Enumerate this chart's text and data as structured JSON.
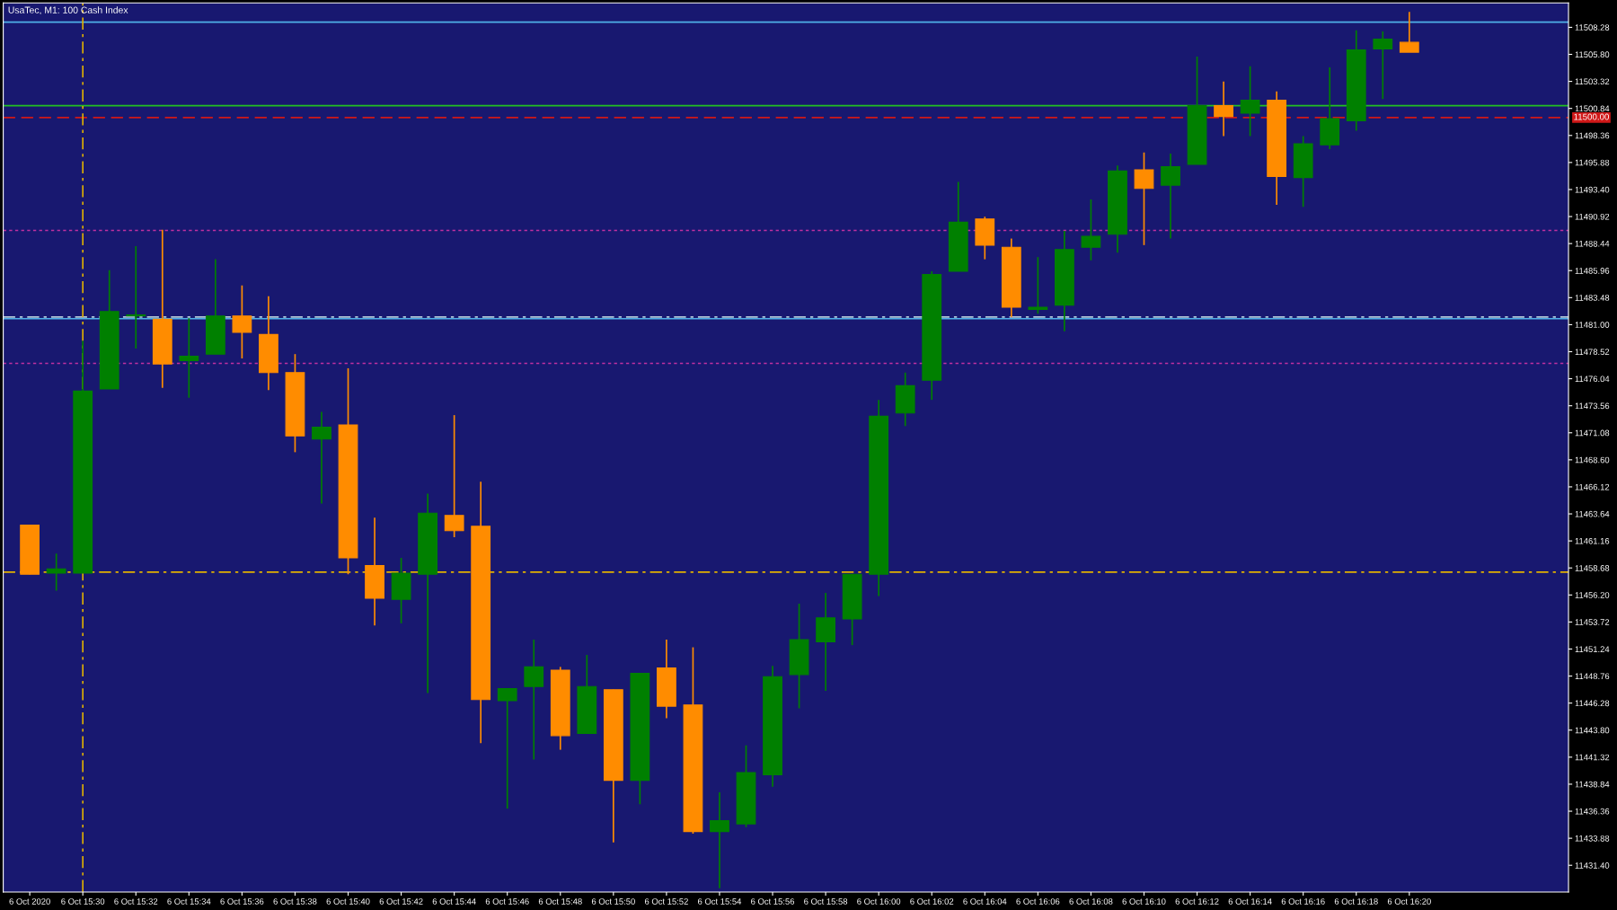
{
  "chart_data": {
    "type": "candlestick",
    "title": "UsaTec, M1: 100 Cash Index",
    "x": [
      "2020-10-06T15:28",
      "2020-10-06T15:29",
      "2020-10-06T15:30",
      "2020-10-06T15:31",
      "2020-10-06T15:32",
      "2020-10-06T15:33",
      "2020-10-06T15:34",
      "2020-10-06T15:35",
      "2020-10-06T15:36",
      "2020-10-06T15:37",
      "2020-10-06T15:38",
      "2020-10-06T15:39",
      "2020-10-06T15:40",
      "2020-10-06T15:41",
      "2020-10-06T15:42",
      "2020-10-06T15:43",
      "2020-10-06T15:44",
      "2020-10-06T15:45",
      "2020-10-06T15:46",
      "2020-10-06T15:47",
      "2020-10-06T15:48",
      "2020-10-06T15:49",
      "2020-10-06T15:50",
      "2020-10-06T15:51",
      "2020-10-06T15:52",
      "2020-10-06T15:53",
      "2020-10-06T15:54",
      "2020-10-06T15:55",
      "2020-10-06T15:56",
      "2020-10-06T15:57",
      "2020-10-06T15:58",
      "2020-10-06T15:59",
      "2020-10-06T16:00",
      "2020-10-06T16:01",
      "2020-10-06T16:02",
      "2020-10-06T16:03",
      "2020-10-06T16:04",
      "2020-10-06T16:05",
      "2020-10-06T16:06",
      "2020-10-06T16:07",
      "2020-10-06T16:08",
      "2020-10-06T16:09",
      "2020-10-06T16:10",
      "2020-10-06T16:11",
      "2020-10-06T16:12",
      "2020-10-06T16:13",
      "2020-10-06T16:14",
      "2020-10-06T16:15",
      "2020-10-06T16:16",
      "2020-10-06T16:17",
      "2020-10-06T16:18",
      "2020-10-06T16:19",
      "2020-10-06T16:20"
    ],
    "ohlc": [
      [
        11462.6,
        11462.6,
        11458.1,
        11458.1
      ],
      [
        11458.2,
        11460.0,
        11456.6,
        11458.6
      ],
      [
        11458.2,
        11479.5,
        11458.2,
        11474.9
      ],
      [
        11475.1,
        11486.0,
        11475.1,
        11482.2
      ],
      [
        11481.8,
        11488.2,
        11478.8,
        11481.9
      ],
      [
        11481.5,
        11489.7,
        11475.2,
        11477.4
      ],
      [
        11477.7,
        11481.6,
        11474.3,
        11478.1
      ],
      [
        11478.3,
        11487.0,
        11478.3,
        11481.8
      ],
      [
        11481.8,
        11484.6,
        11477.9,
        11480.3
      ],
      [
        11480.1,
        11483.6,
        11475.0,
        11476.6
      ],
      [
        11476.6,
        11478.3,
        11469.3,
        11470.8
      ],
      [
        11470.5,
        11473.0,
        11464.6,
        11471.6
      ],
      [
        11471.8,
        11477.0,
        11458.1,
        11459.6
      ],
      [
        11458.9,
        11463.3,
        11453.4,
        11455.9
      ],
      [
        11455.8,
        11459.6,
        11453.6,
        11458.2
      ],
      [
        11458.1,
        11465.5,
        11447.2,
        11463.7
      ],
      [
        11463.5,
        11472.7,
        11461.5,
        11462.1
      ],
      [
        11462.5,
        11466.6,
        11442.6,
        11446.6
      ],
      [
        11446.5,
        11447.6,
        11436.6,
        11447.6
      ],
      [
        11447.8,
        11452.1,
        11441.1,
        11449.6
      ],
      [
        11449.3,
        11449.6,
        11442.0,
        11443.3
      ],
      [
        11443.5,
        11450.7,
        11443.5,
        11447.8
      ],
      [
        11447.5,
        11447.5,
        11433.5,
        11439.2
      ],
      [
        11439.2,
        11449.0,
        11437.0,
        11449.0
      ],
      [
        11449.5,
        11452.1,
        11444.9,
        11446.0
      ],
      [
        11446.1,
        11451.4,
        11434.3,
        11434.5
      ],
      [
        11434.5,
        11438.1,
        11429.3,
        11435.5
      ],
      [
        11435.2,
        11442.4,
        11434.9,
        11439.9
      ],
      [
        11439.7,
        11449.7,
        11438.6,
        11448.7
      ],
      [
        11448.9,
        11455.4,
        11445.8,
        11452.1
      ],
      [
        11451.9,
        11456.4,
        11447.4,
        11454.1
      ],
      [
        11454.0,
        11458.1,
        11451.6,
        11458.1
      ],
      [
        11458.1,
        11474.1,
        11456.1,
        11472.6
      ],
      [
        11472.9,
        11476.6,
        11471.7,
        11475.4
      ],
      [
        11475.9,
        11485.9,
        11474.1,
        11485.6
      ],
      [
        11485.9,
        11494.1,
        11485.9,
        11490.4
      ],
      [
        11490.7,
        11490.9,
        11487.0,
        11488.3
      ],
      [
        11488.1,
        11488.9,
        11481.7,
        11482.6
      ],
      [
        11482.4,
        11487.2,
        11482.0,
        11482.6
      ],
      [
        11482.8,
        11489.6,
        11480.4,
        11487.9
      ],
      [
        11488.1,
        11492.5,
        11486.9,
        11489.1
      ],
      [
        11489.3,
        11495.6,
        11487.6,
        11495.1
      ],
      [
        11495.2,
        11496.8,
        11488.3,
        11493.5
      ],
      [
        11493.8,
        11496.7,
        11488.9,
        11495.5
      ],
      [
        11495.7,
        11505.6,
        11495.7,
        11501.1
      ],
      [
        11501.1,
        11503.3,
        11498.3,
        11500.1
      ],
      [
        11500.4,
        11504.7,
        11498.3,
        11501.6
      ],
      [
        11501.6,
        11502.4,
        11492.0,
        11494.6
      ],
      [
        11494.5,
        11498.3,
        11491.8,
        11497.6
      ],
      [
        11497.5,
        11504.6,
        11497.1,
        11499.9
      ],
      [
        11499.7,
        11508.0,
        11498.8,
        11506.2
      ],
      [
        11506.3,
        11507.9,
        11501.7,
        11507.2
      ],
      [
        11506.9,
        11509.7,
        11506.0,
        11506.0
      ]
    ],
    "colors": [
      "#ff8c00",
      "#008000",
      "#008000",
      "#008000",
      "#008000",
      "#ff8c00",
      "#008000",
      "#008000",
      "#ff8c00",
      "#ff8c00",
      "#ff8c00",
      "#008000",
      "#ff8c00",
      "#ff8c00",
      "#008000",
      "#008000",
      "#ff8c00",
      "#ff8c00",
      "#008000",
      "#008000",
      "#ff8c00",
      "#008000",
      "#ff8c00",
      "#008000",
      "#ff8c00",
      "#ff8c00",
      "#008000",
      "#008000",
      "#008000",
      "#008000",
      "#008000",
      "#008000",
      "#008000",
      "#008000",
      "#008000",
      "#008000",
      "#ff8c00",
      "#ff8c00",
      "#008000",
      "#008000",
      "#008000",
      "#008000",
      "#ff8c00",
      "#008000",
      "#008000",
      "#ff8c00",
      "#008000",
      "#ff8c00",
      "#008000",
      "#008000",
      "#008000",
      "#008000",
      "#ff8c00"
    ],
    "xlim": [
      "2020-10-06T15:27",
      "2020-10-06T16:26"
    ],
    "xticks": [
      {
        "value": "2020-10-06T15:28",
        "label": "6 Oct 2020"
      },
      {
        "value": "2020-10-06T15:30",
        "label": "6 Oct 15:30"
      },
      {
        "value": "2020-10-06T15:32",
        "label": "6 Oct 15:32"
      },
      {
        "value": "2020-10-06T15:34",
        "label": "6 Oct 15:34"
      },
      {
        "value": "2020-10-06T15:36",
        "label": "6 Oct 15:36"
      },
      {
        "value": "2020-10-06T15:38",
        "label": "6 Oct 15:38"
      },
      {
        "value": "2020-10-06T15:40",
        "label": "6 Oct 15:40"
      },
      {
        "value": "2020-10-06T15:42",
        "label": "6 Oct 15:42"
      },
      {
        "value": "2020-10-06T15:44",
        "label": "6 Oct 15:44"
      },
      {
        "value": "2020-10-06T15:46",
        "label": "6 Oct 15:46"
      },
      {
        "value": "2020-10-06T15:48",
        "label": "6 Oct 15:48"
      },
      {
        "value": "2020-10-06T15:50",
        "label": "6 Oct 15:50"
      },
      {
        "value": "2020-10-06T15:52",
        "label": "6 Oct 15:52"
      },
      {
        "value": "2020-10-06T15:54",
        "label": "6 Oct 15:54"
      },
      {
        "value": "2020-10-06T15:56",
        "label": "6 Oct 15:56"
      },
      {
        "value": "2020-10-06T15:58",
        "label": "6 Oct 15:58"
      },
      {
        "value": "2020-10-06T16:00",
        "label": "6 Oct 16:00"
      },
      {
        "value": "2020-10-06T16:02",
        "label": "6 Oct 16:02"
      },
      {
        "value": "2020-10-06T16:04",
        "label": "6 Oct 16:04"
      },
      {
        "value": "2020-10-06T16:06",
        "label": "6 Oct 16:06"
      },
      {
        "value": "2020-10-06T16:08",
        "label": "6 Oct 16:08"
      },
      {
        "value": "2020-10-06T16:10",
        "label": "6 Oct 16:10"
      },
      {
        "value": "2020-10-06T16:12",
        "label": "6 Oct 16:12"
      },
      {
        "value": "2020-10-06T16:14",
        "label": "6 Oct 16:14"
      },
      {
        "value": "2020-10-06T16:16",
        "label": "6 Oct 16:16"
      },
      {
        "value": "2020-10-06T16:18",
        "label": "6 Oct 16:18"
      },
      {
        "value": "2020-10-06T16:20",
        "label": "6 Oct 16:20"
      }
    ],
    "ylim": [
      11428.95,
      11510.52
    ],
    "yticks": [
      11508.28,
      {
        "value": 11505.8,
        "label": "11505.80"
      },
      11503.32,
      11500.84,
      11498.36,
      11495.88,
      {
        "value": 11493.4,
        "label": "11493.40"
      },
      11490.92,
      11488.44,
      11485.96,
      11483.48,
      {
        "value": 11481.0,
        "label": "11481.00"
      },
      11478.52,
      11476.04,
      11473.56,
      11471.08,
      {
        "value": 11468.6,
        "label": "11468.60"
      },
      11466.12,
      11463.64,
      11461.16,
      11458.68,
      {
        "value": 11456.2,
        "label": "11456.20"
      },
      11453.72,
      11451.24,
      11448.76,
      11446.28,
      {
        "value": 11443.8,
        "label": "11443.80"
      },
      11441.32,
      11438.84,
      11436.36,
      11433.88,
      {
        "value": 11431.4,
        "label": "11431.40"
      }
    ],
    "ref_lines": [
      {
        "axis": "y",
        "value": 11508.76,
        "color": "#4fb0e8",
        "line_style": "solid"
      },
      {
        "axis": "y",
        "value": 11501.09,
        "color": "#22c022",
        "line_style": "solid"
      },
      {
        "axis": "y",
        "value": 11500.0,
        "label": "11500.00",
        "color": "#d01818",
        "line_style": "dashed"
      },
      {
        "axis": "y",
        "value": 11489.65,
        "color": "#c030a0",
        "line_style": "dotted"
      },
      {
        "axis": "y",
        "value": 11481.55,
        "color": "#4fb0e8",
        "line_style": "solid"
      },
      {
        "axis": "y",
        "value": 11481.71,
        "color": "#b0c8d8",
        "line_style": "dashdot"
      },
      {
        "axis": "y",
        "value": 11477.45,
        "color": "#c030a0",
        "line_style": "dotted"
      },
      {
        "axis": "y",
        "value": 11458.29,
        "color": "#e0b000",
        "line_style": "dashdot"
      },
      {
        "axis": "x",
        "value": "2020-10-06T15:30",
        "color": "#e0b000",
        "line_style": "dashdot"
      }
    ],
    "grid": false
  }
}
